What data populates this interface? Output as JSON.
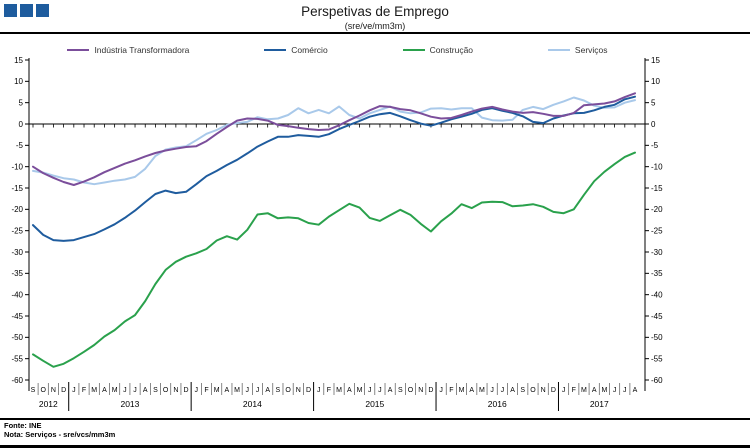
{
  "header": {
    "title": "Perspetivas de Emprego",
    "subtitle": "(sre/ve/mm3m)"
  },
  "logo": {
    "color": "#1E5C9E"
  },
  "footer": {
    "source": "Fonte: INE",
    "note": "Nota: Serviços - sre/vcs/mm3m"
  },
  "chart_data": {
    "type": "line",
    "title": "Perspetivas de Emprego",
    "subtitle": "(sre/ve/mm3m)",
    "ylim": [
      -60,
      15
    ],
    "ytick_step": 5,
    "grid": "zero-axis-only",
    "legend_position": "top",
    "categories": [
      "S",
      "O",
      "N",
      "D",
      "J",
      "F",
      "M",
      "A",
      "M",
      "J",
      "J",
      "A",
      "S",
      "O",
      "N",
      "D",
      "J",
      "F",
      "M",
      "A",
      "M",
      "J",
      "J",
      "A",
      "S",
      "O",
      "N",
      "D",
      "J",
      "F",
      "M",
      "A",
      "M",
      "J",
      "J",
      "A",
      "S",
      "O",
      "N",
      "D",
      "J",
      "F",
      "M",
      "A",
      "M",
      "J",
      "J",
      "A",
      "S",
      "O",
      "N",
      "D",
      "J",
      "F",
      "M",
      "A",
      "M",
      "J",
      "J",
      "A"
    ],
    "years": [
      {
        "label": "2012",
        "start": 0,
        "count": 4
      },
      {
        "label": "2013",
        "start": 4,
        "count": 12
      },
      {
        "label": "2014",
        "start": 16,
        "count": 12
      },
      {
        "label": "2015",
        "start": 28,
        "count": 12
      },
      {
        "label": "2016",
        "start": 40,
        "count": 12
      },
      {
        "label": "2017",
        "start": 52,
        "count": 8
      }
    ],
    "series": [
      {
        "name": "Indústria Transformadora",
        "slug": "industria-transformadora",
        "color": "#7B4E9B",
        "values": [
          -10.0,
          -11.5,
          -12.6,
          -13.6,
          -14.3,
          -13.5,
          -12.5,
          -11.3,
          -10.3,
          -9.3,
          -8.5,
          -7.6,
          -6.8,
          -6.2,
          -5.8,
          -5.4,
          -5.2,
          -4.0,
          -2.3,
          -0.7,
          0.8,
          1.3,
          1.2,
          0.8,
          -0.2,
          -0.5,
          -0.9,
          -1.2,
          -1.4,
          -1.3,
          -0.3,
          0.9,
          2.0,
          3.2,
          4.2,
          4.0,
          3.5,
          3.2,
          2.5,
          1.7,
          1.3,
          1.4,
          2.1,
          2.9,
          3.6,
          4.0,
          3.4,
          2.9,
          2.6,
          2.8,
          2.4,
          1.9,
          1.9,
          2.6,
          4.4,
          4.6,
          4.8,
          5.3,
          6.3,
          7.2
        ]
      },
      {
        "name": "Comércio",
        "slug": "comercio",
        "color": "#1F5C9E",
        "values": [
          -23.7,
          -26.0,
          -27.2,
          -27.4,
          -27.2,
          -26.5,
          -25.8,
          -24.7,
          -23.5,
          -22.0,
          -20.3,
          -18.3,
          -16.4,
          -15.6,
          -16.2,
          -15.9,
          -14.1,
          -12.2,
          -11.0,
          -9.6,
          -8.4,
          -6.9,
          -5.3,
          -4.1,
          -3.0,
          -3.0,
          -2.6,
          -2.8,
          -3.0,
          -2.4,
          -1.2,
          -0.2,
          0.7,
          1.7,
          2.3,
          2.6,
          1.8,
          0.9,
          0.1,
          -0.4,
          0.3,
          1.1,
          1.7,
          2.4,
          3.3,
          3.7,
          3.1,
          2.6,
          1.8,
          0.5,
          0.2,
          1.3,
          2.0,
          2.5,
          2.6,
          3.2,
          4.0,
          4.5,
          5.8,
          6.4
        ]
      },
      {
        "name": "Construção",
        "slug": "construcao",
        "color": "#2AA14C",
        "values": [
          -54.0,
          -55.5,
          -56.9,
          -56.2,
          -54.9,
          -53.4,
          -51.8,
          -49.8,
          -48.3,
          -46.3,
          -44.8,
          -41.5,
          -37.5,
          -34.2,
          -32.3,
          -31.1,
          -30.3,
          -29.3,
          -27.3,
          -26.3,
          -27.1,
          -24.8,
          -21.2,
          -20.9,
          -22.1,
          -21.9,
          -22.1,
          -23.2,
          -23.6,
          -21.7,
          -20.2,
          -18.7,
          -19.6,
          -22.0,
          -22.7,
          -21.4,
          -20.1,
          -21.3,
          -23.4,
          -25.2,
          -22.8,
          -21.0,
          -18.8,
          -19.7,
          -18.4,
          -18.2,
          -18.3,
          -19.3,
          -19.1,
          -18.8,
          -19.4,
          -20.6,
          -20.9,
          -20.0,
          -16.6,
          -13.4,
          -11.2,
          -9.4,
          -7.7,
          -6.7
        ]
      },
      {
        "name": "Serviços",
        "slug": "servicos",
        "color": "#A9C9EA",
        "values": [
          -11.0,
          -11.4,
          -12.1,
          -12.7,
          -13.0,
          -13.7,
          -14.1,
          -13.7,
          -13.3,
          -13.0,
          -12.4,
          -10.5,
          -7.5,
          -6.0,
          -5.5,
          -5.2,
          -3.8,
          -2.3,
          -1.4,
          -0.2,
          0.2,
          0.5,
          1.6,
          1.1,
          1.3,
          2.1,
          3.7,
          2.5,
          3.3,
          2.5,
          4.1,
          2.1,
          1.3,
          2.5,
          3.3,
          4.1,
          2.9,
          2.5,
          2.7,
          3.6,
          3.7,
          3.4,
          3.7,
          3.7,
          1.5,
          0.9,
          0.8,
          1.0,
          3.3,
          4.0,
          3.5,
          4.5,
          5.3,
          6.2,
          5.5,
          4.3,
          3.8,
          3.9,
          5.0,
          5.6
        ]
      }
    ]
  }
}
